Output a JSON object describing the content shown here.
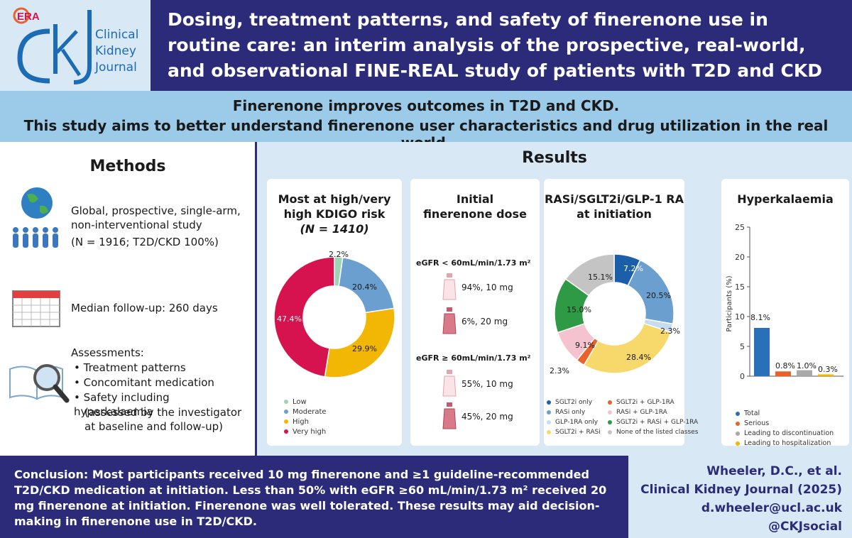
{
  "logo": {
    "era": "ERA",
    "journal": "Clinical Kidney Journal",
    "ckj": "CKJ"
  },
  "title": "Dosing, treatment patterns, and safety of finerenone use in routine care: an interim analysis of the prospective, real-world, and observational FINE-REAL study of patients with T2D and CKD",
  "banner": {
    "line1": "Finerenone improves outcomes in T2D and CKD.",
    "line2": "This study aims to better understand finerenone user characteristics and drug utilization in the real world."
  },
  "methods": {
    "title": "Methods",
    "study": "Global, prospective, single-arm, non-interventional study",
    "study_n": "(N = 1916; T2D/CKD 100%)",
    "followup": "Median follow-up: 260 days",
    "assessments_title": "Assessments:",
    "assessments": [
      "Treatment patterns",
      "Concomitant medication",
      "Safety including hyperkalaemia"
    ],
    "assessment_note": "(assessed by the investigator at baseline and follow-up)"
  },
  "results": {
    "title": "Results",
    "kdigo": {
      "title_line1": "Most at high/very",
      "title_line2": "high KDIGO risk",
      "title_line3": "(N = 1410)",
      "labels": [
        "2.2%",
        "20.4%",
        "29.9%",
        "47.4%"
      ],
      "legend": [
        "Low",
        "Moderate",
        "High",
        "Very high"
      ]
    },
    "dose": {
      "title_line1": "Initial",
      "title_line2": "finerenone dose",
      "group1": "eGFR < 60mL/min/1.73 m²",
      "group1_10mg": "94%, 10 mg",
      "group1_20mg": "6%, 20 mg",
      "group2": "eGFR ≥ 60mL/min/1.73 m²",
      "group2_10mg": "55%, 10 mg",
      "group2_20mg": "45%, 20 mg"
    },
    "meds": {
      "title_line1": "RASi/SGLT2i/GLP-1 RA",
      "title_line2": "at initiation",
      "labels": [
        "7.2%",
        "20.5%",
        "2.3%",
        "28.4%",
        "2.3%",
        "9.1%",
        "15.0%",
        "15.1%"
      ],
      "legend": [
        "SGLT2i only",
        "RASi only",
        "GLP-1RA only",
        "SGLT2i + RASi",
        "SGLT2i + GLP-1RA",
        "RASi + GLP-1RA",
        "SGLT2i + RASi + GLP-1RA",
        "None of the listed classes"
      ]
    },
    "hyper": {
      "title": "Hyperkalaemia",
      "ylabel": "Participants (%)",
      "bar_labels": [
        "8.1%",
        "0.8%",
        "1.0%",
        "0.3%"
      ],
      "legend": [
        "Total",
        "Serious",
        "Leading to discontinuation",
        "Leading to hospitalization"
      ]
    }
  },
  "conclusion": "Conclusion: Most participants received 10 mg finerenone and ≥1 guideline-recommended T2D/CKD medication at initiation. Less than 50% with eGFR ≥60 mL/min/1.73 m² received 20 mg finerenone at initiation. Finerenone was well tolerated. These results may aid decision-making in finerenone use in T2D/CKD.",
  "citation": {
    "authors": "Wheeler, D.C., et al.",
    "journal": "Clinical Kidney Journal (2025)",
    "email": "d.wheeler@ucl.ac.uk",
    "social": "@CKJsocial"
  },
  "colors": {
    "navy": "#2b2b7a",
    "light_blue": "#d9e8f5",
    "banner": "#9ccbe9",
    "low": "#9fd3b5",
    "moderate": "#6a9fd0",
    "high": "#f2b705",
    "very_high": "#d6134f"
  },
  "chart_data": [
    {
      "type": "pie",
      "title": "Most at high/very high KDIGO risk (N = 1410)",
      "categories": [
        "Low",
        "Moderate",
        "High",
        "Very high"
      ],
      "values": [
        2.2,
        20.4,
        29.9,
        47.4
      ],
      "colors": [
        "#9fd3b5",
        "#6a9fd0",
        "#f2b705",
        "#d6134f"
      ]
    },
    {
      "type": "pie",
      "title": "RASi/SGLT2i/GLP-1 RA at initiation",
      "categories": [
        "SGLT2i only",
        "RASi only",
        "GLP-1RA only",
        "SGLT2i + RASi",
        "SGLT2i + GLP-1RA",
        "RASi + GLP-1RA",
        "SGLT2i + RASi + GLP-1RA",
        "None of the listed classes"
      ],
      "values": [
        7.2,
        20.5,
        2.3,
        28.4,
        2.3,
        9.1,
        15.0,
        15.1
      ],
      "colors": [
        "#1b5fa8",
        "#6a9fd0",
        "#c7dcef",
        "#f7d86a",
        "#e8622a",
        "#f5c3cf",
        "#2e9a46",
        "#c4c4c4"
      ]
    },
    {
      "type": "bar",
      "title": "Hyperkalaemia",
      "categories": [
        "Total",
        "Serious",
        "Leading to discontinuation",
        "Leading to hospitalization"
      ],
      "values": [
        8.1,
        0.8,
        1.0,
        0.3
      ],
      "colors": [
        "#2a70b8",
        "#e8622a",
        "#a9a9a9",
        "#f2b705"
      ],
      "ylabel": "Participants (%)",
      "ylim": [
        0,
        25
      ],
      "yticks": [
        0,
        5,
        10,
        15,
        20,
        25
      ]
    }
  ]
}
